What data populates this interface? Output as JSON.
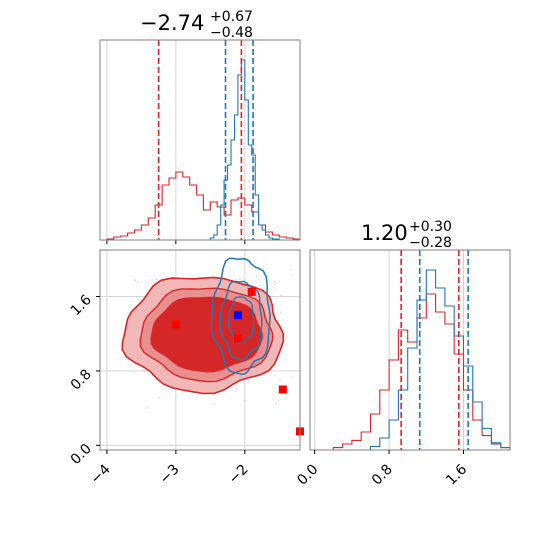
{
  "chart_data": [
    {
      "panel": "marginal-x",
      "type": "histogram",
      "title": "−2.74",
      "title_upper": "+0.67",
      "title_lower": "−0.48",
      "xlim": [
        -4.1,
        -1.2
      ],
      "grid": true,
      "quantiles": [
        {
          "series": "red",
          "values": [
            -3.25,
            -2.05
          ]
        },
        {
          "series": "blue",
          "values": [
            -2.28,
            -1.88
          ]
        }
      ],
      "series": [
        {
          "color": "#d62728",
          "bins": [
            -4.0,
            -3.9,
            -3.8,
            -3.7,
            -3.6,
            -3.5,
            -3.4,
            -3.3,
            -3.2,
            -3.1,
            -3.0,
            -2.9,
            -2.8,
            -2.7,
            -2.6,
            -2.5,
            -2.4,
            -2.3,
            -2.2,
            -2.1,
            -2.0,
            -1.9,
            -1.8,
            -1.7,
            -1.6,
            -1.5,
            -1.4,
            -1.3
          ],
          "counts": [
            1,
            3,
            4,
            7,
            10,
            15,
            22,
            35,
            55,
            62,
            68,
            63,
            55,
            45,
            30,
            38,
            33,
            25,
            40,
            42,
            35,
            28,
            15,
            8,
            5,
            3,
            2,
            1
          ]
        },
        {
          "color": "#1f77b4",
          "bins": [
            -2.5,
            -2.45,
            -2.4,
            -2.35,
            -2.3,
            -2.25,
            -2.2,
            -2.15,
            -2.1,
            -2.05,
            -2.0,
            -1.95,
            -1.9,
            -1.85,
            -1.8,
            -1.75,
            -1.7,
            -1.65,
            -1.6,
            -1.55,
            -1.5
          ],
          "counts": [
            2,
            5,
            15,
            35,
            60,
            75,
            100,
            125,
            165,
            180,
            140,
            95,
            85,
            45,
            15,
            10,
            5,
            2,
            1,
            1,
            0
          ]
        }
      ]
    },
    {
      "panel": "joint",
      "type": "contour",
      "xlim": [
        -4.1,
        -1.2
      ],
      "ylim": [
        -0.05,
        2.1
      ],
      "x_ticks": [
        -4,
        -3,
        -2
      ],
      "y_ticks": [
        0.0,
        0.8,
        1.6
      ],
      "x_tick_labels": [
        "−4",
        "−3",
        "−2"
      ],
      "y_tick_labels": [
        "0.0",
        "0.8",
        "1.6"
      ],
      "grid": true,
      "markers": [
        {
          "color": "#ff0000",
          "x": -3.0,
          "y": 1.3
        },
        {
          "color": "#ff0000",
          "x": -1.9,
          "y": 1.65
        },
        {
          "color": "#ff0000",
          "x": -2.1,
          "y": 1.15
        },
        {
          "color": "#ff0000",
          "x": -1.45,
          "y": 0.6
        },
        {
          "color": "#ff0000",
          "x": -1.2,
          "y": 0.15
        },
        {
          "color": "#0000ff",
          "x": -2.1,
          "y": 1.4
        }
      ]
    },
    {
      "panel": "marginal-y",
      "type": "histogram",
      "title": "1.20",
      "title_upper": "+0.30",
      "title_lower": "−0.28",
      "xlim": [
        -0.05,
        2.1
      ],
      "x_ticks": [
        0.0,
        0.8,
        1.6
      ],
      "x_tick_labels": [
        "0.0",
        "0.8",
        "1.6"
      ],
      "grid": true,
      "quantiles": [
        {
          "series": "red",
          "values": [
            0.93,
            1.55
          ]
        },
        {
          "series": "blue",
          "values": [
            1.13,
            1.65
          ]
        }
      ],
      "series": [
        {
          "color": "#d62728",
          "bins": [
            0.2,
            0.3,
            0.4,
            0.5,
            0.6,
            0.7,
            0.8,
            0.9,
            1.0,
            1.1,
            1.2,
            1.3,
            1.4,
            1.5,
            1.6,
            1.7,
            1.8,
            1.9,
            2.0
          ],
          "counts": [
            2,
            5,
            8,
            15,
            30,
            50,
            75,
            100,
            90,
            110,
            130,
            115,
            105,
            80,
            50,
            25,
            12,
            5,
            2
          ]
        },
        {
          "color": "#1f77b4",
          "bins": [
            0.6,
            0.7,
            0.8,
            0.9,
            1.0,
            1.1,
            1.2,
            1.3,
            1.4,
            1.5,
            1.6,
            1.7,
            1.8,
            1.9,
            2.0
          ],
          "counts": [
            3,
            10,
            25,
            50,
            85,
            125,
            150,
            135,
            120,
            95,
            70,
            40,
            18,
            6,
            2
          ]
        }
      ]
    }
  ]
}
